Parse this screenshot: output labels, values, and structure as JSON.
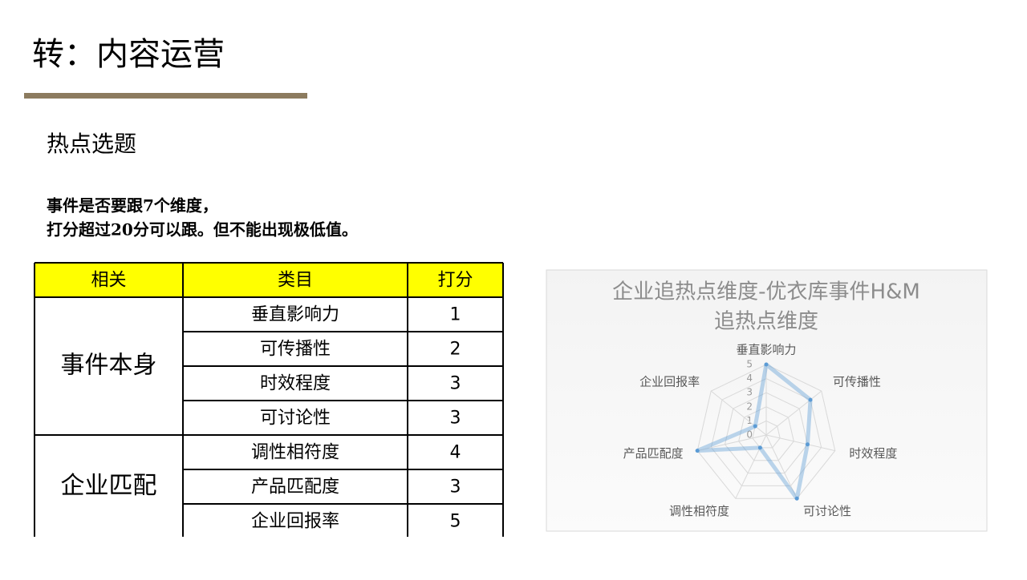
{
  "header": {
    "title": "转：内容运营"
  },
  "section": {
    "title": "热点选题",
    "lines": [
      "事件是否要跟7个维度，",
      "打分超过20分可以跟。但不能出现极低值。"
    ]
  },
  "table": {
    "columns": [
      "相关",
      "类目",
      "打分"
    ],
    "groups": [
      {
        "label": "事件本身",
        "rows": [
          [
            "垂直影响力",
            1
          ],
          [
            "可传播性",
            2
          ],
          [
            "时效程度",
            3
          ],
          [
            "可讨论性",
            3
          ]
        ]
      },
      {
        "label": "企业匹配",
        "rows": [
          [
            "调性相符度",
            4
          ],
          [
            "产品匹配度",
            3
          ],
          [
            "企业回报率",
            5
          ]
        ]
      }
    ]
  },
  "chart_data": {
    "type": "radar",
    "title": [
      "企业追热点维度-优衣库事件H&M",
      "追热点维度"
    ],
    "categories": [
      "垂直影响力",
      "可传播性",
      "时效程度",
      "可讨论性",
      "调性相符度",
      "产品匹配度",
      "企业回报率"
    ],
    "series": [
      {
        "color": "#5b9bd5",
        "values": [
          5,
          4,
          3,
          5,
          1,
          5,
          1
        ]
      }
    ],
    "rlim": [
      0,
      5
    ],
    "rticks": [
      0,
      1,
      2,
      3,
      4,
      5
    ],
    "grid": true
  }
}
